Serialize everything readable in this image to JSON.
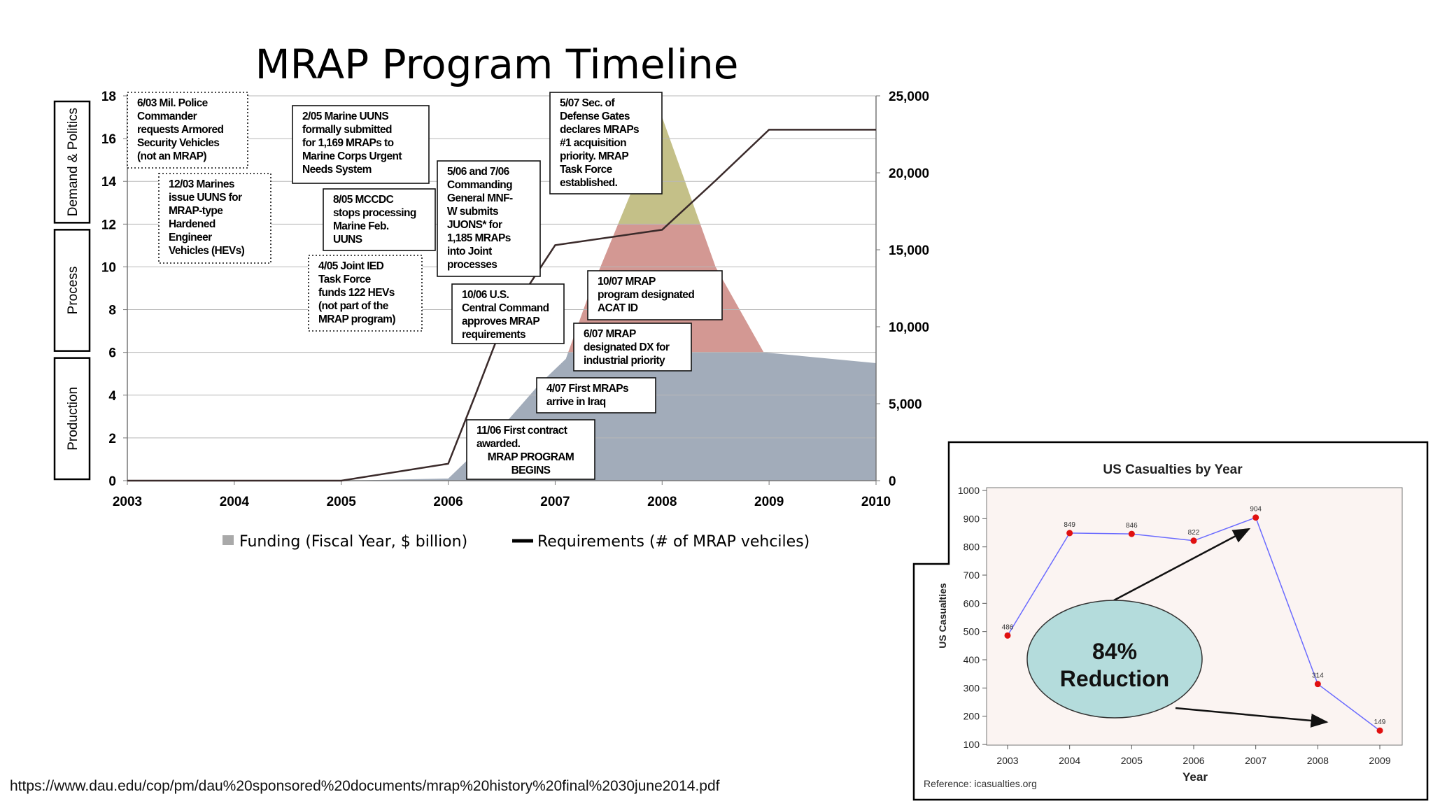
{
  "source_url": "https://www.dau.edu/cop/pm/dau%20sponsored%20documents/mrap%20history%20final%2030june2014.pdf",
  "chart_data": [
    {
      "type": "area",
      "title": "MRAP Program Timeline",
      "x_ticks": [
        "2003",
        "2004",
        "2005",
        "2006",
        "2007",
        "2008",
        "2009",
        "2010"
      ],
      "xlim": [
        2003,
        2010
      ],
      "left_axis": {
        "ylim": [
          0,
          18
        ],
        "ticks": [
          "0",
          "2",
          "4",
          "6",
          "8",
          "10",
          "12",
          "14",
          "16",
          "18"
        ]
      },
      "right_axis": {
        "ylim": [
          0,
          25000
        ],
        "ticks": [
          "0",
          "5,000",
          "10,000",
          "15,000",
          "20,000",
          "25,000"
        ]
      },
      "grid": true,
      "sections": [
        {
          "name": "Production",
          "range": [
            0,
            6
          ]
        },
        {
          "name": "Process",
          "range": [
            6,
            12
          ]
        },
        {
          "name": "Demand & Politics",
          "range": [
            12,
            18
          ]
        }
      ],
      "band_colors": {
        "Production": "#a2acba",
        "Process": "#d39893",
        "Demand & Politics": "#c4c088"
      },
      "legend": {
        "placement": "bottom",
        "entries": [
          {
            "label": "Funding (Fiscal Year, $ billion)",
            "marker": "square",
            "color": "#a9a9a9"
          },
          {
            "label": "Requirements (# of MRAP vehciles)",
            "marker": "line",
            "color": "#000000"
          }
        ]
      },
      "series": [
        {
          "name": "Funding (Fiscal Year, $ billion)",
          "axis": "left",
          "x": [
            2003,
            2005.0,
            2006.0,
            2006.5,
            2006.85,
            2007.1,
            2007.3,
            2008.0,
            2008.5,
            2008.95,
            2010
          ],
          "values": [
            0,
            0,
            0.1,
            2.5,
            4.5,
            5.7,
            8.5,
            17,
            10,
            6,
            5.5
          ]
        },
        {
          "name": "Requirements (# of MRAP vehciles)",
          "axis": "right",
          "x": [
            2003,
            2005.0,
            2006.0,
            2006.25,
            2006.5,
            2007.0,
            2008.0,
            2008.5,
            2009.0,
            2010
          ],
          "values": [
            0,
            0,
            1100,
            5500,
            10000,
            15300,
            16300,
            19500,
            22800,
            22800
          ]
        }
      ],
      "annotations": [
        {
          "lines": [
            "6/03 Mil. Police",
            "Commander",
            "requests Armored",
            "Security Vehicles",
            "(not an MRAP)"
          ],
          "border": "dotted"
        },
        {
          "lines": [
            "12/03 Marines",
            "issue UUNS for",
            "MRAP-type",
            "Hardened",
            "Engineer",
            "Vehicles (HEVs)"
          ],
          "border": "dotted"
        },
        {
          "lines": [
            "2/05 Marine UUNS",
            "formally submitted",
            "for 1,169 MRAPs to",
            "Marine Corps Urgent",
            "Needs System"
          ],
          "border": "solid"
        },
        {
          "lines": [
            "8/05 MCCDC",
            "stops processing",
            "Marine Feb.",
            "UUNS"
          ],
          "border": "solid"
        },
        {
          "lines": [
            "4/05 Joint IED",
            "Task Force",
            "funds 122 HEVs",
            "(not part of the",
            "MRAP program)"
          ],
          "border": "dotted"
        },
        {
          "lines": [
            "5/06 and 7/06",
            "Commanding",
            "General MNF-",
            "W submits",
            "JUONS* for",
            "1,185 MRAPs",
            "into Joint",
            "processes"
          ],
          "border": "solid"
        },
        {
          "lines": [
            "5/07 Sec. of",
            "Defense Gates",
            "declares MRAPs",
            "#1 acquisition",
            "priority. MRAP",
            "Task Force",
            "established."
          ],
          "border": "solid"
        },
        {
          "lines": [
            "10/06 U.S.",
            "Central Command",
            "approves MRAP",
            "requirements"
          ],
          "border": "solid"
        },
        {
          "lines": [
            "10/07 MRAP",
            "program designated",
            "ACAT ID"
          ],
          "border": "solid"
        },
        {
          "lines": [
            "6/07 MRAP",
            "designated DX for",
            "industrial priority"
          ],
          "border": "solid"
        },
        {
          "lines": [
            "4/07 First MRAPs",
            "arrive in Iraq"
          ],
          "border": "solid"
        },
        {
          "lines": [
            "11/06 First contract",
            "awarded.",
            "MRAP PROGRAM",
            "BEGINS"
          ],
          "border": "solid"
        }
      ]
    },
    {
      "type": "line",
      "title": "US Casualties by Year",
      "xlabel": "Year",
      "ylabel": "US Casualties",
      "x": [
        2003,
        2004,
        2005,
        2006,
        2007,
        2008,
        2009
      ],
      "values": [
        486,
        849,
        846,
        822,
        904,
        314,
        149
      ],
      "data_labels": [
        "486",
        "849",
        "846",
        "822",
        "904",
        "314",
        "149"
      ],
      "x_ticks": [
        "2003",
        "2004",
        "2005",
        "2006",
        "2007",
        "2008",
        "2009"
      ],
      "y_ticks": [
        "100",
        "200",
        "300",
        "400",
        "500",
        "600",
        "700",
        "800",
        "900",
        "1000"
      ],
      "ylim": [
        100,
        1000
      ],
      "line_color": "#6b6bff",
      "marker_color": "#e01010",
      "callout": {
        "lines": [
          "84%",
          "Reduction"
        ],
        "fill": "#b4dcdc"
      },
      "reference": "Reference: icasualties.org"
    }
  ]
}
